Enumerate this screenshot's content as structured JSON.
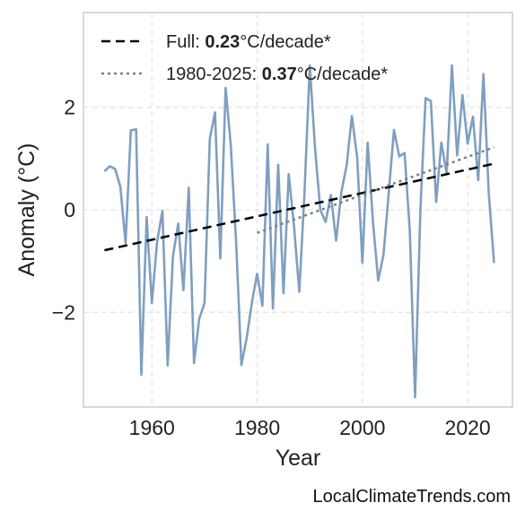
{
  "chart_data": {
    "type": "line",
    "title": "",
    "xlabel": "Year",
    "ylabel": "Anomaly (°C)",
    "xlim": [
      1947,
      2028.5
    ],
    "ylim": [
      -3.85,
      3.85
    ],
    "xticks": [
      1960,
      1980,
      2000,
      2020
    ],
    "yticks": [
      -2,
      0,
      2
    ],
    "ytick_labels": [
      "−2",
      "0",
      "2"
    ],
    "grid": true,
    "legend_position": "top-left",
    "series": [
      {
        "color": "#7f9fc0",
        "x": [
          1951,
          1952,
          1953,
          1954,
          1955,
          1956,
          1957,
          1958,
          1959,
          1960,
          1961,
          1962,
          1963,
          1964,
          1965,
          1966,
          1967,
          1968,
          1969,
          1970,
          1971,
          1972,
          1973,
          1974,
          1975,
          1976,
          1977,
          1978,
          1979,
          1980,
          1981,
          1982,
          1983,
          1984,
          1985,
          1986,
          1987,
          1988,
          1989,
          1990,
          1991,
          1992,
          1993,
          1994,
          1995,
          1996,
          1997,
          1998,
          1999,
          2000,
          2001,
          2002,
          2003,
          2004,
          2005,
          2006,
          2007,
          2008,
          2009,
          2010,
          2011,
          2012,
          2013,
          2014,
          2015,
          2016,
          2017,
          2018,
          2019,
          2020,
          2021,
          2022,
          2023,
          2024,
          2025
        ],
        "values": [
          0.75,
          0.85,
          0.8,
          0.45,
          -0.65,
          1.55,
          1.57,
          -3.22,
          -0.14,
          -1.82,
          -0.62,
          -0.02,
          -3.04,
          -0.91,
          -0.27,
          -1.57,
          0.43,
          -2.99,
          -2.13,
          -1.82,
          1.39,
          1.9,
          -0.95,
          2.38,
          1.25,
          -0.63,
          -3.03,
          -2.51,
          -1.81,
          -1.25,
          -1.87,
          1.28,
          -1.93,
          0.88,
          -1.63,
          0.7,
          -0.32,
          -1.6,
          0.34,
          2.82,
          1.19,
          0.0,
          -0.24,
          0.29,
          -0.6,
          0.35,
          0.87,
          1.83,
          1.02,
          -1.03,
          1.31,
          -0.24,
          -1.38,
          -0.88,
          0.34,
          1.56,
          1.04,
          1.11,
          -0.4,
          -3.66,
          -0.02,
          2.18,
          2.12,
          0.15,
          1.31,
          0.71,
          2.82,
          1.06,
          2.24,
          1.29,
          1.82,
          0.58,
          2.65,
          0.33,
          -1.04
        ]
      }
    ],
    "trends": [
      {
        "name_prefix": "Full: ",
        "name_bold": "0.23",
        "name_suffix": "°C/decade*",
        "style": "dashed",
        "color": "#000000",
        "x": [
          1951,
          2025
        ],
        "values": [
          -0.79,
          0.9
        ]
      },
      {
        "name_prefix": "1980-2025: ",
        "name_bold": "0.37",
        "name_suffix": "°C/decade*",
        "style": "dotted",
        "color": "#7f7f7f",
        "x": [
          1980,
          2025
        ],
        "values": [
          -0.45,
          1.22
        ]
      }
    ]
  },
  "credit": "LocalClimateTrends.com"
}
